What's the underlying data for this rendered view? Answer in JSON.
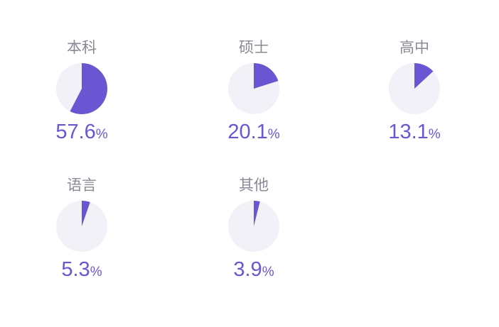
{
  "colors": {
    "accent": "#6a56d2",
    "track": "#f2f1f7"
  },
  "items": [
    {
      "label": "本科",
      "value": "57.6",
      "unit": "%",
      "fraction": 0.576
    },
    {
      "label": "硕士",
      "value": "20.1",
      "unit": "%",
      "fraction": 0.201
    },
    {
      "label": "高中",
      "value": "13.1",
      "unit": "%",
      "fraction": 0.131
    },
    {
      "label": "语言",
      "value": "5.3",
      "unit": "%",
      "fraction": 0.053
    },
    {
      "label": "其他",
      "value": "3.9",
      "unit": "%",
      "fraction": 0.039
    }
  ]
}
